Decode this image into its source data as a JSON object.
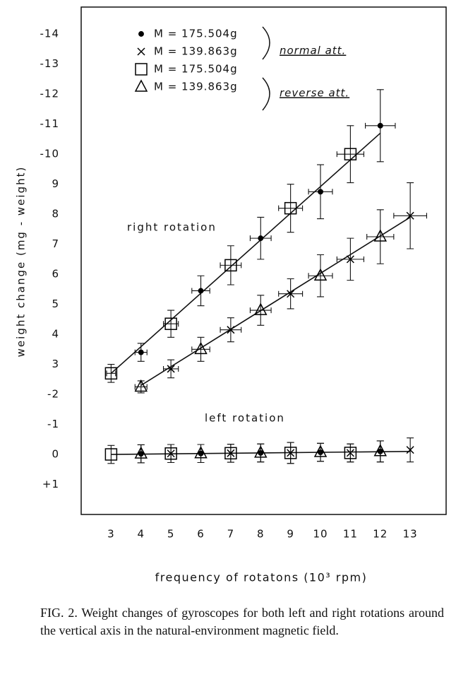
{
  "chart_data": {
    "type": "scatter",
    "x_label": "frequency of rotatons (10³ rpm)",
    "y_label": "weight change (mg - weight)",
    "xlim": [
      2,
      14.2
    ],
    "xticks": [
      3,
      4,
      5,
      6,
      7,
      8,
      9,
      10,
      11,
      12,
      13
    ],
    "ylim": [
      2,
      -14.9
    ],
    "yticks": [
      -14,
      -13,
      -12,
      -11,
      -10,
      {
        "value": -9,
        "label": "9"
      },
      {
        "value": -8,
        "label": "8"
      },
      {
        "value": -7,
        "label": "7"
      },
      {
        "value": -6,
        "label": "6"
      },
      {
        "value": -5,
        "label": "5"
      },
      {
        "value": -4,
        "label": "4"
      },
      {
        "value": -3,
        "label": "3"
      },
      -2,
      -1,
      0,
      {
        "value": 1,
        "label": "+1"
      }
    ],
    "annotations": [
      "right rotation",
      "left rotation"
    ],
    "legend_groups": [
      "normal att.",
      "reverse att."
    ],
    "series": [
      {
        "name": "M = 175.504g",
        "marker": "dot",
        "color": "#000000",
        "x": [
          4,
          6,
          8,
          10,
          12
        ],
        "values": [
          -3.4,
          -5.45,
          -7.2,
          -8.75,
          -10.95
        ],
        "yerr": [
          0.3,
          0.5,
          0.7,
          0.9,
          1.2
        ],
        "xerr": [
          0.2,
          0.3,
          0.35,
          0.4,
          0.5
        ],
        "left_values": [
          -0.02,
          -0.03,
          -0.05,
          -0.07,
          -0.1
        ],
        "left_yerr": [
          0.3,
          0.3,
          0.3,
          0.3,
          0.35
        ]
      },
      {
        "name": "M = 139.863g",
        "marker": "cross",
        "color": "#000000",
        "x": [
          5,
          7,
          9,
          11,
          13
        ],
        "values": [
          -2.85,
          -4.15,
          -5.35,
          -6.5,
          -7.95
        ],
        "yerr": [
          0.3,
          0.4,
          0.5,
          0.7,
          1.1
        ],
        "xerr": [
          0.25,
          0.35,
          0.4,
          0.45,
          0.55
        ],
        "left_values": [
          -0.03,
          -0.04,
          -0.05,
          -0.05,
          -0.15
        ],
        "left_yerr": [
          0.3,
          0.3,
          0.35,
          0.3,
          0.4
        ]
      },
      {
        "name": "M = 175.504g",
        "marker": "square",
        "color": "#000000",
        "x": [
          3,
          5,
          7,
          9,
          11
        ],
        "values": [
          -2.7,
          -4.35,
          -6.3,
          -8.2,
          -10.0
        ],
        "yerr": [
          0.3,
          0.45,
          0.65,
          0.8,
          0.95
        ],
        "xerr": [
          0.15,
          0.25,
          0.35,
          0.4,
          0.45
        ],
        "left_values": [
          0.0,
          -0.03,
          -0.04,
          -0.05,
          -0.05
        ],
        "left_yerr": [
          0.3,
          0.3,
          0.3,
          0.35,
          0.3
        ]
      },
      {
        "name": "M = 139.863g",
        "marker": "triangle",
        "color": "#000000",
        "x": [
          4,
          6,
          8,
          10,
          12
        ],
        "values": [
          -2.25,
          -3.5,
          -4.8,
          -5.95,
          -7.25
        ],
        "yerr": [
          0.2,
          0.4,
          0.5,
          0.7,
          0.9
        ],
        "xerr": [
          0.2,
          0.3,
          0.35,
          0.4,
          0.45
        ],
        "left_values": [
          -0.02,
          -0.03,
          -0.05,
          -0.07,
          -0.1
        ],
        "left_yerr": [
          0.3,
          0.3,
          0.3,
          0.3,
          0.35
        ]
      }
    ],
    "fit_lines": [
      {
        "x": [
          3,
          12
        ],
        "values": [
          -2.7,
          -10.7
        ]
      },
      {
        "x": [
          4,
          13
        ],
        "values": [
          -2.3,
          -7.9
        ]
      },
      {
        "x": [
          3,
          13
        ],
        "values": [
          0.0,
          -0.1
        ]
      }
    ]
  },
  "caption": "FIG. 2.  Weight changes of gyroscopes for both left and right rotations around the vertical axis in the natural-environment magnetic field."
}
